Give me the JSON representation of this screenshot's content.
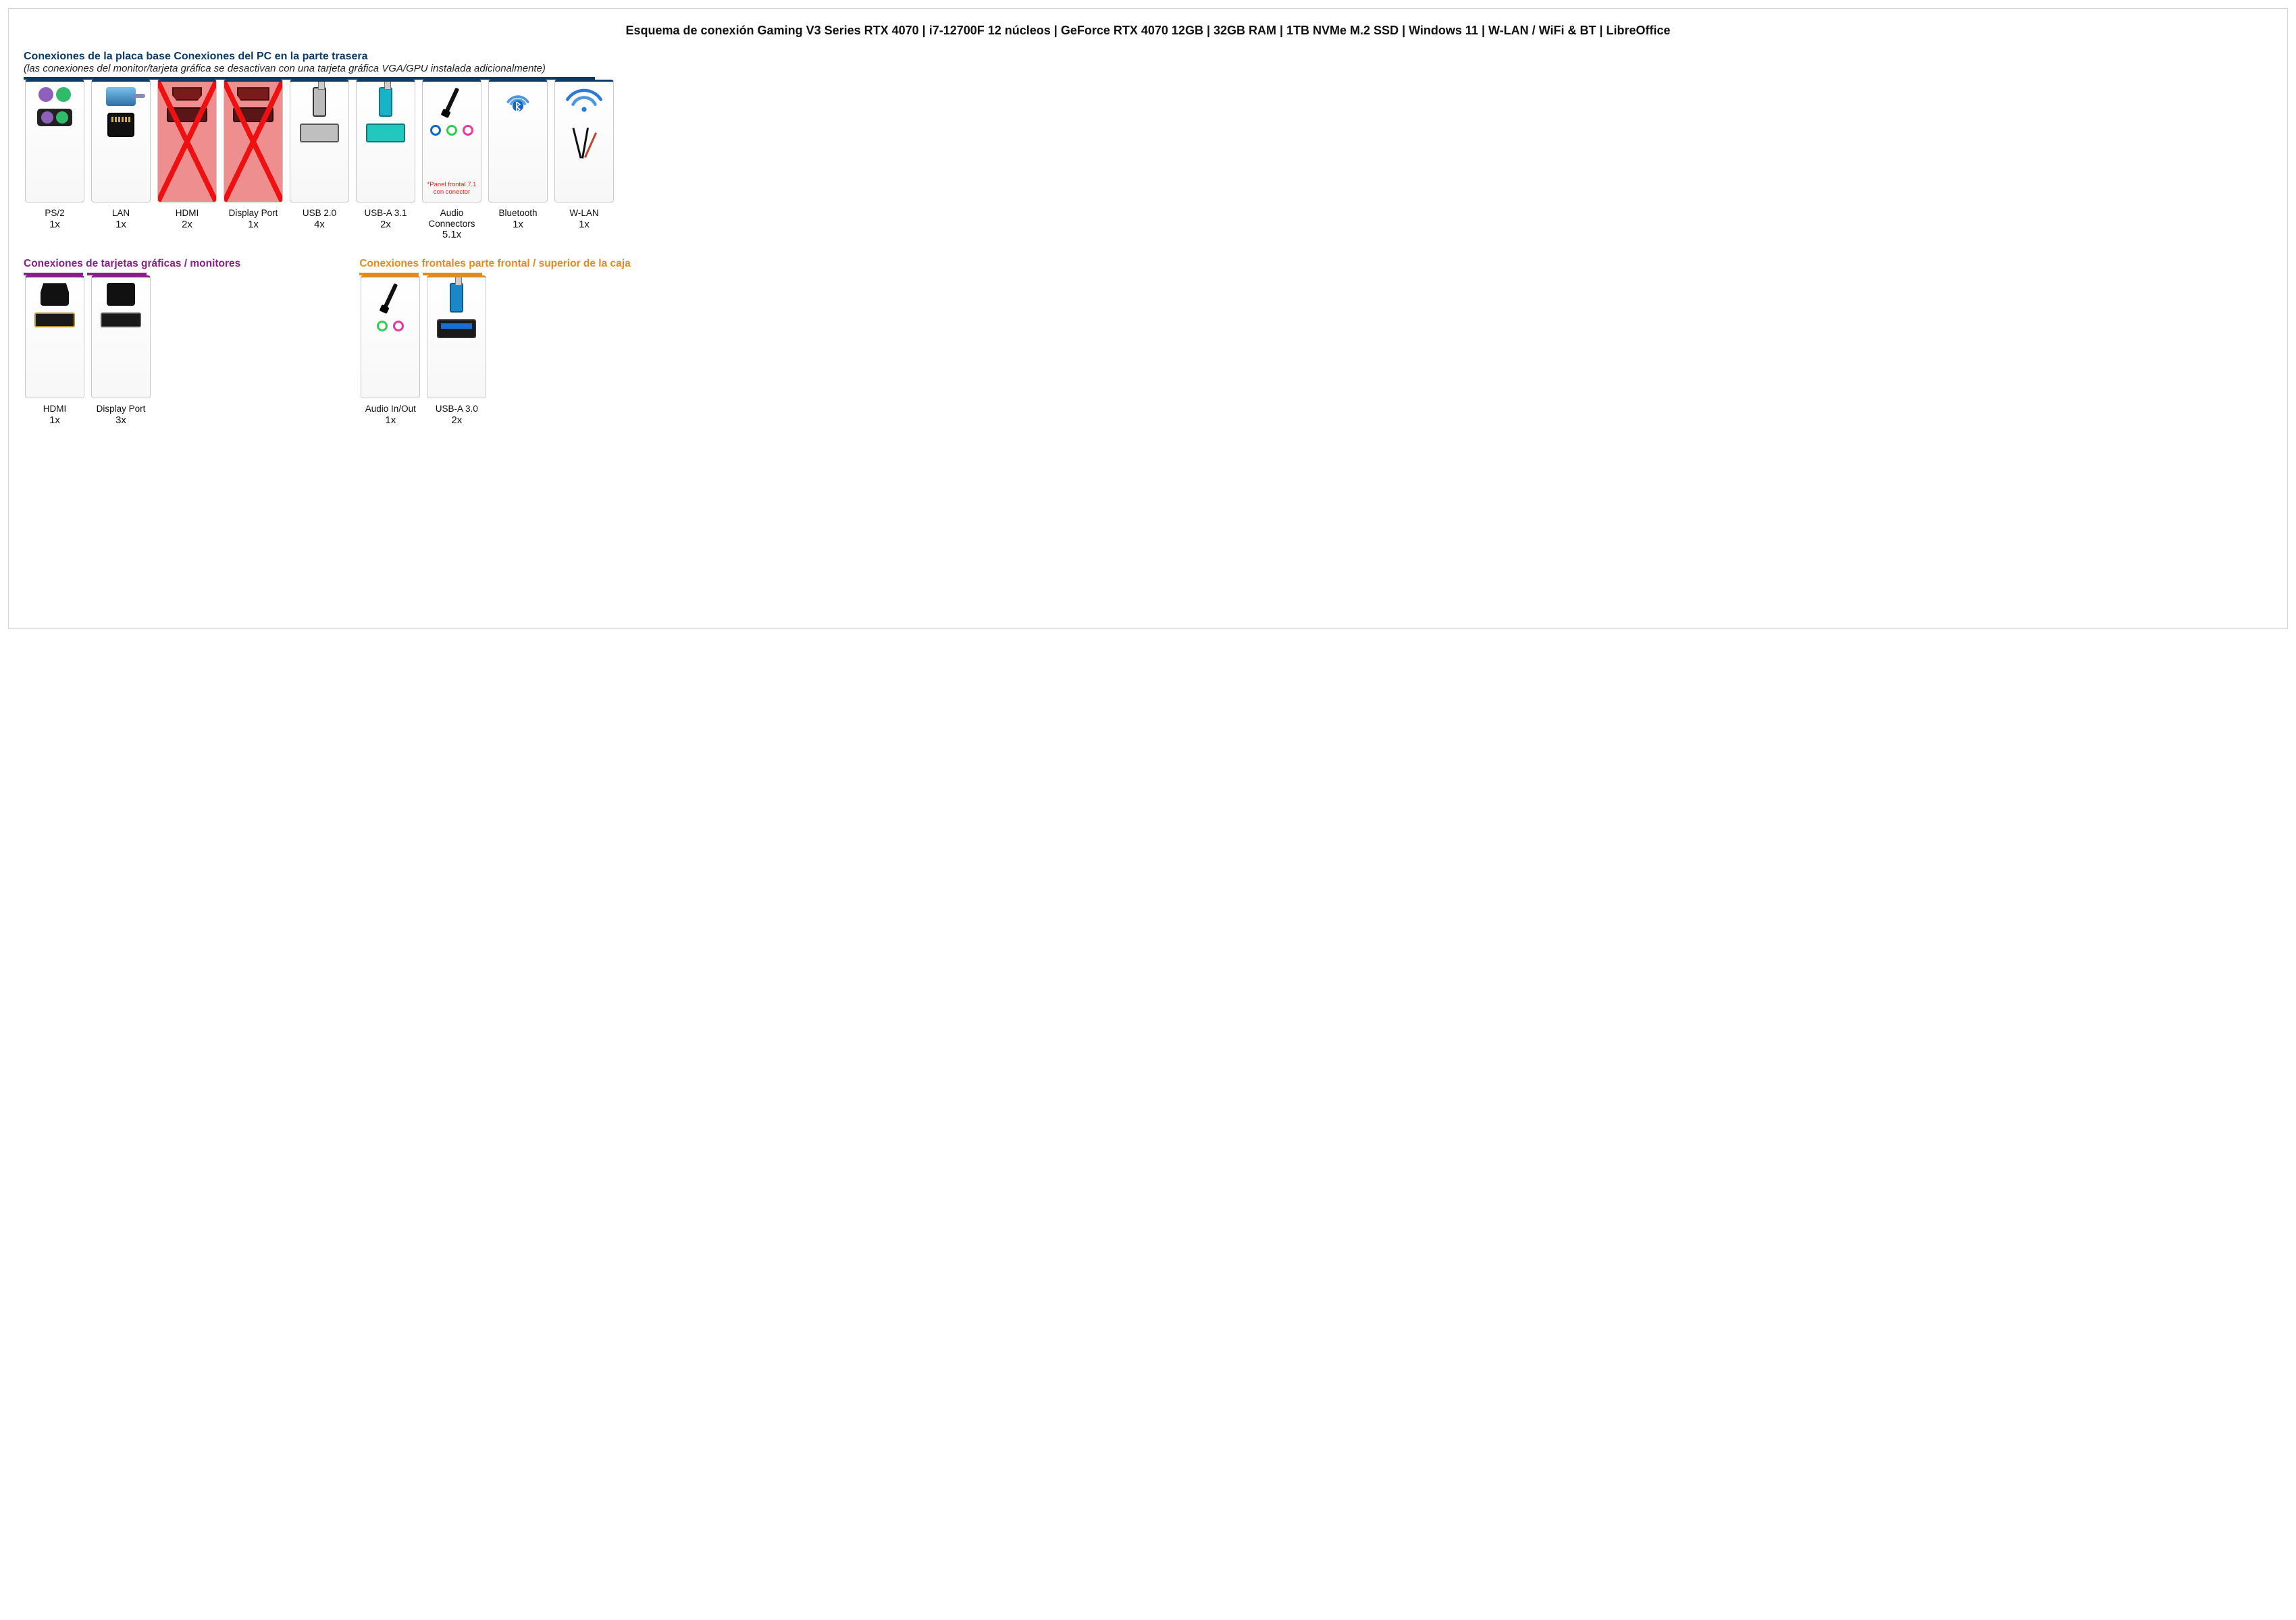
{
  "title": "Esquema de conexión Gaming V3 Series RTX 4070 | i7-12700F 12 núcleos | GeForce RTX 4070 12GB | 32GB RAM | 1TB NVMe M.2 SSD | Windows 11 | W-LAN / WiFi & BT | LibreOffice",
  "colors": {
    "navy": "#0e3a66",
    "purple": "#8b1e8b",
    "orange": "#e58a17",
    "text": "#111111",
    "disabled_bg": "#ef8e8e",
    "audio_jack_blue": "#1464c4",
    "audio_jack_green": "#2fcf54",
    "audio_jack_pink": "#e83a9a"
  },
  "section_mobo": {
    "heading": "Conexiones de la placa base Conexiones del PC en la parte trasera",
    "note": "(las conexiones del monitor/tarjeta gráfica se desactivan con una tarjeta gráfica VGA/GPU instalada adicionalmente)",
    "tiles": [
      {
        "id": "ps2",
        "label": "PS/2",
        "count": "1x",
        "disabled": false,
        "icon": "ps2"
      },
      {
        "id": "lan",
        "label": "LAN",
        "count": "1x",
        "disabled": false,
        "icon": "lan"
      },
      {
        "id": "hdmi",
        "label": "HDMI",
        "count": "2x",
        "disabled": true,
        "icon": "hdmi-red"
      },
      {
        "id": "dp",
        "label": "Display Port",
        "count": "1x",
        "disabled": true,
        "icon": "dp-red"
      },
      {
        "id": "usb2",
        "label": "USB 2.0",
        "count": "4x",
        "disabled": false,
        "icon": "usb-grey"
      },
      {
        "id": "usb31",
        "label": "USB-A 3.1",
        "count": "2x",
        "disabled": false,
        "icon": "usb-teal"
      },
      {
        "id": "audio",
        "label": "Audio Connectors",
        "count": "5.1x",
        "disabled": false,
        "icon": "audio3",
        "note": "*Panel frontal 7.1 con conector"
      },
      {
        "id": "bt",
        "label": "Bluetooth",
        "count": "1x",
        "disabled": false,
        "icon": "bt"
      },
      {
        "id": "wlan",
        "label": "W-LAN",
        "count": "1x",
        "disabled": false,
        "icon": "wlan"
      }
    ]
  },
  "section_gpu": {
    "heading": "Conexiones de tarjetas gráficas / monitores",
    "tiles": [
      {
        "id": "gpu-hdmi",
        "label": "HDMI",
        "count": "1x",
        "icon": "hdmi-black"
      },
      {
        "id": "gpu-dp",
        "label": "Display Port",
        "count": "3x",
        "icon": "dp-black"
      }
    ]
  },
  "section_front": {
    "heading": "Conexiones frontales parte frontal / superior de la caja",
    "tiles": [
      {
        "id": "front-audio",
        "label": "Audio In/Out",
        "count": "1x",
        "icon": "audio2"
      },
      {
        "id": "front-usb3",
        "label": "USB-A 3.0",
        "count": "2x",
        "icon": "usb-blue"
      }
    ]
  }
}
